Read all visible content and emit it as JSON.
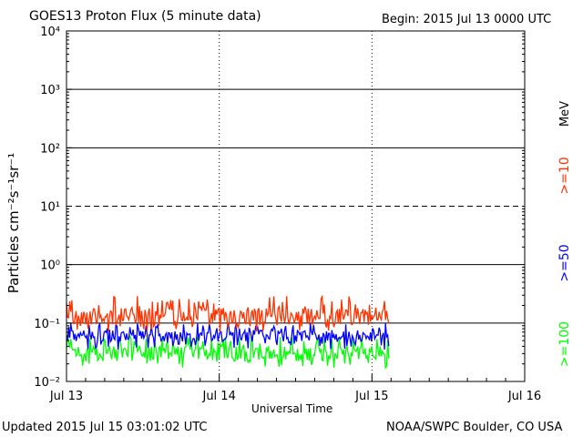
{
  "header": {
    "title": "GOES13 Proton Flux (5 minute data)",
    "begin": "Begin: 2015 Jul 13 0000 UTC"
  },
  "footer": {
    "updated": "Updated 2015 Jul 15 03:01:02 UTC",
    "source": "NOAA/SWPC Boulder, CO USA"
  },
  "chart_data": {
    "type": "line",
    "title": "GOES13 Proton Flux (5 minute data)",
    "xlabel": "Universal Time",
    "ylabel": "Particles cm⁻²s⁻¹sr⁻¹",
    "ylog": true,
    "ylim_exp": [
      -2,
      4
    ],
    "ytick_exponents": [
      -2,
      -1,
      0,
      1,
      2,
      3,
      4
    ],
    "ytick_labels": [
      "10⁻²",
      "10⁻¹",
      "10⁰",
      "10¹",
      "10²",
      "10³",
      "10⁴"
    ],
    "xlim_days": [
      0,
      3
    ],
    "xtick_days": [
      0,
      1,
      2,
      3
    ],
    "xtick_labels": [
      "Jul 13",
      "Jul 14",
      "Jul 15",
      "Jul 16"
    ],
    "units_label": "MeV",
    "dashed_threshold_exp": 1,
    "series": [
      {
        "name": ">=10",
        "color": "#ff3300",
        "typical": 0.13,
        "range": [
          0.07,
          0.3
        ],
        "x_end_days": 2.11
      },
      {
        "name": ">=50",
        "color": "#0000ff",
        "typical": 0.06,
        "range": [
          0.035,
          0.1
        ],
        "x_end_days": 2.11
      },
      {
        "name": ">=100",
        "color": "#00ff00",
        "typical": 0.03,
        "range": [
          0.017,
          0.06
        ],
        "x_end_days": 2.11
      }
    ]
  }
}
